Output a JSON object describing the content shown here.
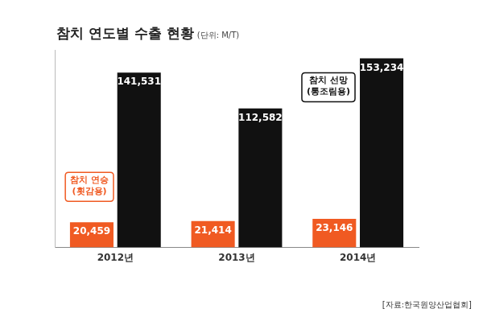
{
  "chart_data": {
    "type": "bar",
    "title": "참치 연도별 수출 현황",
    "subtitle": "(단위: M/T)",
    "source": "[자료:한국원양산업협회]",
    "categories": [
      "2012년",
      "2013년",
      "2014년"
    ],
    "series": [
      {
        "name": "참치 연승 (횟감용)",
        "color": "#f05a22",
        "values": [
          20459,
          21414,
          23146
        ],
        "value_labels": [
          "20,459",
          "21,414",
          "23,146"
        ]
      },
      {
        "name": "참치 선망 (통조림용)",
        "color": "#111111",
        "values": [
          141531,
          112582,
          153234
        ],
        "value_labels": [
          "141,531",
          "112,582",
          "153,234"
        ]
      }
    ],
    "ylim": [
      0,
      160000
    ],
    "grid": false,
    "data_labels": true,
    "tick_labels": "x"
  }
}
